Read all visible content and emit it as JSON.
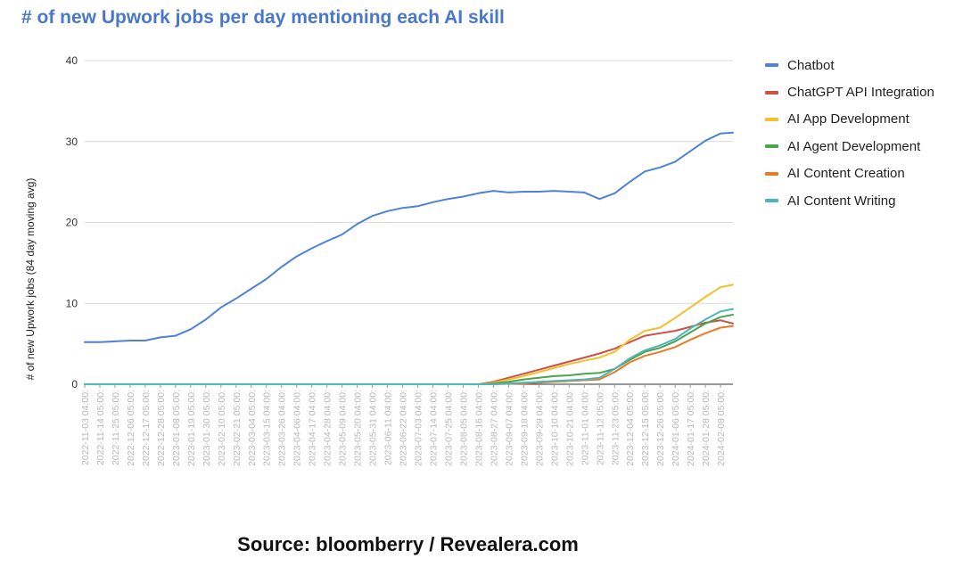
{
  "chart_data": {
    "type": "line",
    "title": "# of new Upwork jobs per day mentioning each AI skill",
    "ylabel": "# of new Upwork jobs (84 day moving avg)",
    "xlabel": "",
    "ylim": [
      0,
      40
    ],
    "yticks": [
      0,
      10,
      20,
      30,
      40
    ],
    "x_tick_labels": [
      "2022-11-03 04:00:",
      "2022-11-14 05:00:",
      "2022-11-25 05:00:",
      "2022-12-06 05:00:",
      "2022-12-17 05:00:",
      "2022-12-28 05:00:",
      "2023-01-08 05:00:",
      "2023-01-19 05:00:",
      "2023-01-30 05:00:",
      "2023-02-10 05:00:",
      "2023-02-21 05:00:",
      "2023-03-04 05:00:",
      "2023-03-15 04:00:",
      "2023-03-26 04:00:",
      "2023-04-06 04:00:",
      "2023-04-17 04:00:",
      "2023-04-28 04:00:",
      "2023-05-09 04:00:",
      "2023-05-20 04:00:",
      "2023-05-31 04:00:",
      "2023-06-11 04:00:",
      "2023-06-22 04:00:",
      "2023-07-03 04:00:",
      "2023-07-14 04:00:",
      "2023-07-25 04:00:",
      "2023-08-05 04:00:",
      "2023-08-16 04:00:",
      "2023-08-27 04:00:",
      "2023-09-07 04:00:",
      "2023-09-18 04:00:",
      "2023-09-29 04:00:",
      "2023-10-10 04:00:",
      "2023-10-21 04:00:",
      "2023-11-01 04:00:",
      "2023-11-12 05:00:",
      "2023-11-23 05:00:",
      "2023-12-04 05:00:",
      "2023-12-15 05:00:",
      "2023-12-26 05:00:",
      "2024-01-06 05:00:",
      "2024-01-17 05:00:",
      "2024-01-28 05:00:",
      "2024-02-08 05:00:"
    ],
    "x": [
      "2022-11-03",
      "2022-11-14",
      "2022-11-25",
      "2022-12-06",
      "2022-12-17",
      "2022-12-28",
      "2023-01-08",
      "2023-01-19",
      "2023-01-30",
      "2023-02-10",
      "2023-02-21",
      "2023-03-04",
      "2023-03-15",
      "2023-03-26",
      "2023-04-06",
      "2023-04-17",
      "2023-04-28",
      "2023-05-09",
      "2023-05-20",
      "2023-05-31",
      "2023-06-11",
      "2023-06-22",
      "2023-07-03",
      "2023-07-14",
      "2023-07-25",
      "2023-08-05",
      "2023-08-16",
      "2023-08-27",
      "2023-09-07",
      "2023-09-18",
      "2023-09-29",
      "2023-10-10",
      "2023-10-21",
      "2023-11-01",
      "2023-11-12",
      "2023-11-23",
      "2023-12-04",
      "2023-12-15",
      "2023-12-26",
      "2024-01-06",
      "2024-01-17",
      "2024-01-28",
      "2024-02-08",
      "2024-02-17"
    ],
    "series": [
      {
        "name": "Chatbot",
        "color": "#4f81d9",
        "values": [
          5.2,
          5.2,
          5.3,
          5.4,
          5.4,
          5.8,
          6.0,
          6.8,
          8.0,
          9.5,
          10.6,
          11.8,
          13.0,
          14.5,
          15.8,
          16.8,
          17.7,
          18.5,
          19.8,
          20.8,
          21.4,
          21.8,
          22.0,
          22.5,
          22.9,
          23.2,
          23.6,
          23.9,
          23.7,
          23.8,
          23.8,
          23.9,
          23.8,
          23.7,
          22.9,
          23.6,
          25.0,
          26.3,
          26.8,
          27.5,
          28.8,
          30.1,
          31.0,
          31.1
        ]
      },
      {
        "name": "ChatGPT API Integration",
        "color": "#cf4f45",
        "values": [
          0,
          0,
          0,
          0,
          0,
          0,
          0,
          0,
          0,
          0,
          0,
          0,
          0,
          0,
          0,
          0,
          0,
          0,
          0,
          0,
          0,
          0,
          0,
          0,
          0,
          0,
          0,
          0.3,
          0.8,
          1.3,
          1.8,
          2.3,
          2.8,
          3.3,
          3.8,
          4.4,
          5.2,
          6.0,
          6.3,
          6.6,
          7.1,
          7.6,
          7.9,
          7.5
        ]
      },
      {
        "name": "AI App Development",
        "color": "#f2c12e",
        "values": [
          0,
          0,
          0,
          0,
          0,
          0,
          0,
          0,
          0,
          0,
          0,
          0,
          0,
          0,
          0,
          0,
          0,
          0,
          0,
          0,
          0,
          0,
          0,
          0,
          0,
          0,
          0,
          0.2,
          0.6,
          1.0,
          1.5,
          2.0,
          2.5,
          2.9,
          3.3,
          4.0,
          5.5,
          6.6,
          7.0,
          8.2,
          9.5,
          10.8,
          12.0,
          12.3
        ]
      },
      {
        "name": "AI Agent Development",
        "color": "#4ba34e",
        "values": [
          0,
          0,
          0,
          0,
          0,
          0,
          0,
          0,
          0,
          0,
          0,
          0,
          0,
          0,
          0,
          0,
          0,
          0,
          0,
          0,
          0,
          0,
          0,
          0,
          0,
          0,
          0,
          0.1,
          0.3,
          0.6,
          0.8,
          1.0,
          1.1,
          1.3,
          1.4,
          1.9,
          3.0,
          4.0,
          4.5,
          5.3,
          6.4,
          7.5,
          8.3,
          8.6
        ]
      },
      {
        "name": "AI Content Creation",
        "color": "#ea7a24",
        "values": [
          0,
          0,
          0,
          0,
          0,
          0,
          0,
          0,
          0,
          0,
          0,
          0,
          0,
          0,
          0,
          0,
          0,
          0,
          0,
          0,
          0,
          0,
          0,
          0,
          0,
          0,
          0,
          0,
          0.05,
          0.1,
          0.2,
          0.3,
          0.4,
          0.5,
          0.6,
          1.5,
          2.7,
          3.5,
          4.0,
          4.6,
          5.5,
          6.3,
          7.0,
          7.2
        ]
      },
      {
        "name": "AI Content Writing",
        "color": "#4db6bd",
        "values": [
          0,
          0,
          0,
          0,
          0,
          0,
          0,
          0,
          0,
          0,
          0,
          0,
          0,
          0,
          0,
          0,
          0,
          0,
          0,
          0,
          0,
          0,
          0,
          0,
          0,
          0,
          0,
          0,
          0.1,
          0.2,
          0.3,
          0.4,
          0.5,
          0.6,
          0.8,
          1.9,
          3.2,
          4.2,
          4.8,
          5.6,
          6.9,
          8.0,
          9.0,
          9.3
        ]
      }
    ],
    "grid": true,
    "legend_position": "right"
  },
  "source": "Source: bloomberry / Revealera.com"
}
